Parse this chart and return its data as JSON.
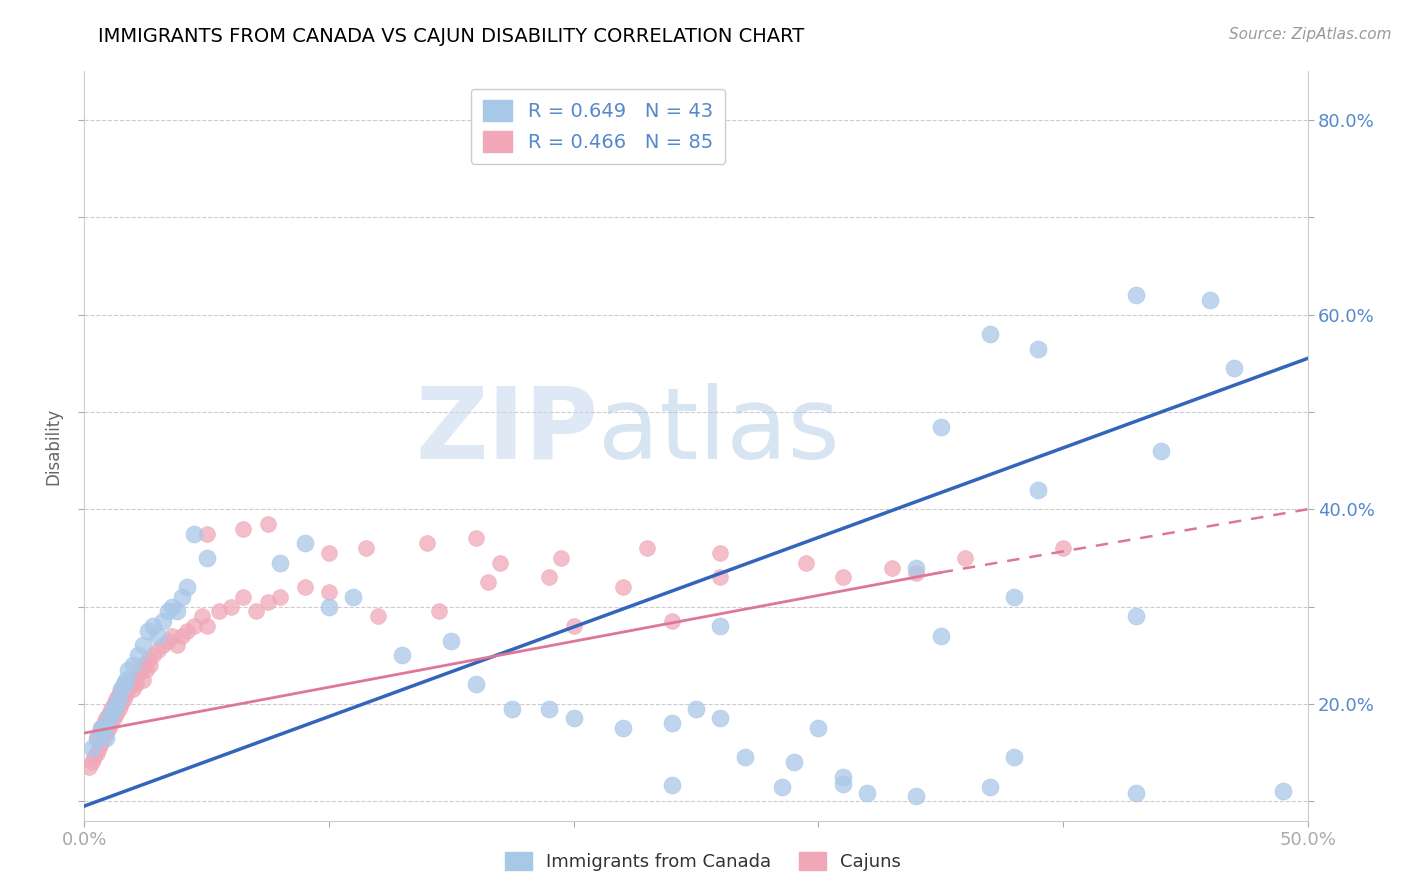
{
  "title": "IMMIGRANTS FROM CANADA VS CAJUN DISABILITY CORRELATION CHART",
  "source": "Source: ZipAtlas.com",
  "ylabel_label": "Disability",
  "xlim": [
    0.0,
    0.5
  ],
  "ylim": [
    0.08,
    0.85
  ],
  "blue_color": "#a8c8e8",
  "pink_color": "#f0a8b8",
  "trendline_blue_color": "#3366bb",
  "trendline_pink_color": "#dd7799",
  "tick_color": "#5588cc",
  "title_fontsize": 14,
  "canada_points": [
    [
      0.003,
      0.155
    ],
    [
      0.005,
      0.165
    ],
    [
      0.007,
      0.175
    ],
    [
      0.008,
      0.175
    ],
    [
      0.009,
      0.165
    ],
    [
      0.01,
      0.185
    ],
    [
      0.011,
      0.19
    ],
    [
      0.012,
      0.195
    ],
    [
      0.013,
      0.2
    ],
    [
      0.014,
      0.205
    ],
    [
      0.015,
      0.215
    ],
    [
      0.016,
      0.22
    ],
    [
      0.017,
      0.225
    ],
    [
      0.018,
      0.235
    ],
    [
      0.02,
      0.24
    ],
    [
      0.022,
      0.25
    ],
    [
      0.024,
      0.26
    ],
    [
      0.026,
      0.275
    ],
    [
      0.028,
      0.28
    ],
    [
      0.03,
      0.27
    ],
    [
      0.032,
      0.285
    ],
    [
      0.034,
      0.295
    ],
    [
      0.036,
      0.3
    ],
    [
      0.038,
      0.295
    ],
    [
      0.04,
      0.31
    ],
    [
      0.042,
      0.32
    ],
    [
      0.045,
      0.375
    ],
    [
      0.05,
      0.35
    ],
    [
      0.08,
      0.345
    ],
    [
      0.09,
      0.365
    ],
    [
      0.1,
      0.3
    ],
    [
      0.11,
      0.31
    ],
    [
      0.13,
      0.25
    ],
    [
      0.15,
      0.265
    ],
    [
      0.16,
      0.22
    ],
    [
      0.175,
      0.195
    ],
    [
      0.19,
      0.195
    ],
    [
      0.2,
      0.185
    ],
    [
      0.22,
      0.175
    ],
    [
      0.24,
      0.18
    ],
    [
      0.25,
      0.195
    ],
    [
      0.26,
      0.185
    ],
    [
      0.27,
      0.145
    ],
    [
      0.29,
      0.14
    ],
    [
      0.31,
      0.125
    ],
    [
      0.34,
      0.105
    ],
    [
      0.37,
      0.115
    ],
    [
      0.285,
      0.115
    ],
    [
      0.31,
      0.118
    ],
    [
      0.32,
      0.108
    ],
    [
      0.24,
      0.117
    ],
    [
      0.38,
      0.145
    ],
    [
      0.43,
      0.108
    ],
    [
      0.49,
      0.11
    ],
    [
      0.35,
      0.27
    ],
    [
      0.38,
      0.31
    ],
    [
      0.43,
      0.29
    ],
    [
      0.3,
      0.175
    ],
    [
      0.26,
      0.28
    ],
    [
      0.34,
      0.34
    ],
    [
      0.43,
      0.62
    ],
    [
      0.46,
      0.615
    ],
    [
      0.37,
      0.58
    ],
    [
      0.39,
      0.565
    ],
    [
      0.47,
      0.545
    ],
    [
      0.35,
      0.485
    ],
    [
      0.39,
      0.42
    ],
    [
      0.44,
      0.46
    ]
  ],
  "cajun_points": [
    [
      0.002,
      0.135
    ],
    [
      0.003,
      0.14
    ],
    [
      0.004,
      0.145
    ],
    [
      0.005,
      0.15
    ],
    [
      0.005,
      0.165
    ],
    [
      0.006,
      0.155
    ],
    [
      0.006,
      0.17
    ],
    [
      0.007,
      0.16
    ],
    [
      0.007,
      0.175
    ],
    [
      0.008,
      0.165
    ],
    [
      0.008,
      0.18
    ],
    [
      0.009,
      0.17
    ],
    [
      0.009,
      0.185
    ],
    [
      0.01,
      0.175
    ],
    [
      0.01,
      0.19
    ],
    [
      0.011,
      0.18
    ],
    [
      0.011,
      0.195
    ],
    [
      0.012,
      0.185
    ],
    [
      0.012,
      0.2
    ],
    [
      0.013,
      0.19
    ],
    [
      0.013,
      0.205
    ],
    [
      0.014,
      0.195
    ],
    [
      0.014,
      0.21
    ],
    [
      0.015,
      0.2
    ],
    [
      0.015,
      0.215
    ],
    [
      0.016,
      0.205
    ],
    [
      0.016,
      0.22
    ],
    [
      0.017,
      0.21
    ],
    [
      0.018,
      0.215
    ],
    [
      0.019,
      0.22
    ],
    [
      0.02,
      0.215
    ],
    [
      0.02,
      0.225
    ],
    [
      0.021,
      0.22
    ],
    [
      0.022,
      0.23
    ],
    [
      0.023,
      0.235
    ],
    [
      0.024,
      0.225
    ],
    [
      0.024,
      0.24
    ],
    [
      0.025,
      0.235
    ],
    [
      0.026,
      0.245
    ],
    [
      0.027,
      0.24
    ],
    [
      0.028,
      0.25
    ],
    [
      0.03,
      0.255
    ],
    [
      0.032,
      0.26
    ],
    [
      0.034,
      0.265
    ],
    [
      0.036,
      0.27
    ],
    [
      0.038,
      0.26
    ],
    [
      0.04,
      0.27
    ],
    [
      0.042,
      0.275
    ],
    [
      0.045,
      0.28
    ],
    [
      0.048,
      0.29
    ],
    [
      0.05,
      0.28
    ],
    [
      0.055,
      0.295
    ],
    [
      0.06,
      0.3
    ],
    [
      0.065,
      0.31
    ],
    [
      0.07,
      0.295
    ],
    [
      0.075,
      0.305
    ],
    [
      0.08,
      0.31
    ],
    [
      0.09,
      0.32
    ],
    [
      0.1,
      0.315
    ],
    [
      0.05,
      0.375
    ],
    [
      0.065,
      0.38
    ],
    [
      0.075,
      0.385
    ],
    [
      0.1,
      0.355
    ],
    [
      0.115,
      0.36
    ],
    [
      0.14,
      0.365
    ],
    [
      0.16,
      0.37
    ],
    [
      0.17,
      0.345
    ],
    [
      0.195,
      0.35
    ],
    [
      0.23,
      0.36
    ],
    [
      0.26,
      0.355
    ],
    [
      0.295,
      0.345
    ],
    [
      0.33,
      0.34
    ],
    [
      0.36,
      0.35
    ],
    [
      0.4,
      0.36
    ],
    [
      0.12,
      0.29
    ],
    [
      0.145,
      0.295
    ],
    [
      0.2,
      0.28
    ],
    [
      0.24,
      0.285
    ],
    [
      0.165,
      0.325
    ],
    [
      0.19,
      0.33
    ],
    [
      0.22,
      0.32
    ],
    [
      0.26,
      0.33
    ],
    [
      0.31,
      0.33
    ],
    [
      0.34,
      0.335
    ]
  ]
}
